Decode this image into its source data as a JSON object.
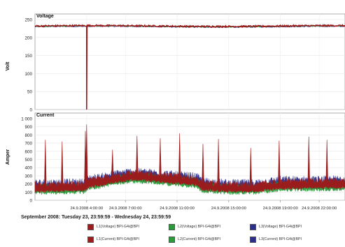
{
  "chart_data": [
    {
      "type": "line",
      "title": "Voltage",
      "ylabel": "Volt",
      "ylim": [
        0,
        250
      ],
      "yticks": [
        "0",
        "50",
        "100",
        "150",
        "200",
        "250"
      ],
      "grid": true,
      "series": [
        {
          "name": "L1(Voltage) BPI-G4i@BPI",
          "color": "#9b1c1c",
          "baseline": 232,
          "noise": 2,
          "dip_hour": 4.0,
          "dip_value": 0
        },
        {
          "name": "L2(Voltage) BPI-G4i@BPI",
          "color": "#2a9a3a",
          "baseline": 231,
          "noise": 1.5
        },
        {
          "name": "L3(Voltage) BPI-G4i@BPI",
          "color": "#2b2f8a",
          "baseline": 230,
          "noise": 1.5
        }
      ]
    },
    {
      "type": "line",
      "title": "Current",
      "ylabel": "Amper",
      "ylim": [
        0,
        1000
      ],
      "yticks": [
        "0",
        "100",
        "200",
        "300",
        "400",
        "500",
        "600",
        "700",
        "800",
        "900",
        "1 000"
      ],
      "xlim_hours": [
        0,
        24
      ],
      "xtick_hours": [
        4,
        7,
        11,
        15,
        19,
        22
      ],
      "xtick_labels": [
        "24.9.2008 4:00:00",
        "24.9.2008 7:00:00",
        "24.9.2008 11:00:00",
        "24.9.2008 15:00:00",
        "24.9.2008 19:00:00",
        "24.9.2008 22:00:00"
      ],
      "grid": true,
      "profile": [
        [
          0,
          160
        ],
        [
          3.8,
          170
        ],
        [
          4.2,
          220
        ],
        [
          5,
          230
        ],
        [
          6,
          270
        ],
        [
          7.5,
          300
        ],
        [
          9,
          290
        ],
        [
          11,
          260
        ],
        [
          12.5,
          240
        ],
        [
          13,
          180
        ],
        [
          15,
          160
        ],
        [
          17,
          160
        ],
        [
          18,
          180
        ],
        [
          19,
          200
        ],
        [
          22,
          200
        ],
        [
          24,
          210
        ]
      ],
      "spikes": [
        {
          "hour": 0.8,
          "value": 740
        },
        {
          "hour": 2.1,
          "value": 720
        },
        {
          "hour": 3.9,
          "value": 850
        },
        {
          "hour": 4.0,
          "value": 930
        },
        {
          "hour": 6.0,
          "value": 620
        },
        {
          "hour": 7.9,
          "value": 790
        },
        {
          "hour": 9.7,
          "value": 760
        },
        {
          "hour": 11.2,
          "value": 820
        },
        {
          "hour": 13.0,
          "value": 690
        },
        {
          "hour": 14.2,
          "value": 750
        },
        {
          "hour": 16.7,
          "value": 640
        },
        {
          "hour": 18.9,
          "value": 730
        },
        {
          "hour": 21.2,
          "value": 780
        },
        {
          "hour": 22.6,
          "value": 740
        }
      ],
      "series": [
        {
          "name": "L1(Current) BPI-G4i@BPI",
          "color": "#9b1c1c"
        },
        {
          "name": "L2(Current) BPI-G4i@BPI",
          "color": "#2a9a3a"
        },
        {
          "name": "L3(Current) BPI-G4i@BPI",
          "color": "#2b2f8a"
        }
      ]
    }
  ],
  "range_label": "September 2008: Tuesday 23, 23:59:59 - Wednesday 24, 23:59:59",
  "legend": [
    {
      "name": "L1(Voltage) BPI-G4i@BPI",
      "color": "#9b1c1c"
    },
    {
      "name": "L2(Voltage) BPI-G4i@BPI",
      "color": "#2a9a3a"
    },
    {
      "name": "L3(Voltage) BPI-G4i@BPI",
      "color": "#2b2f8a"
    },
    {
      "name": "L1(Current) BPI-G4i@BPI",
      "color": "#9b1c1c"
    },
    {
      "name": "L2(Current) BPI-G4i@BPI",
      "color": "#2a9a3a"
    },
    {
      "name": "L3(Current) BPI-G4i@BPI",
      "color": "#2b2f8a"
    }
  ]
}
